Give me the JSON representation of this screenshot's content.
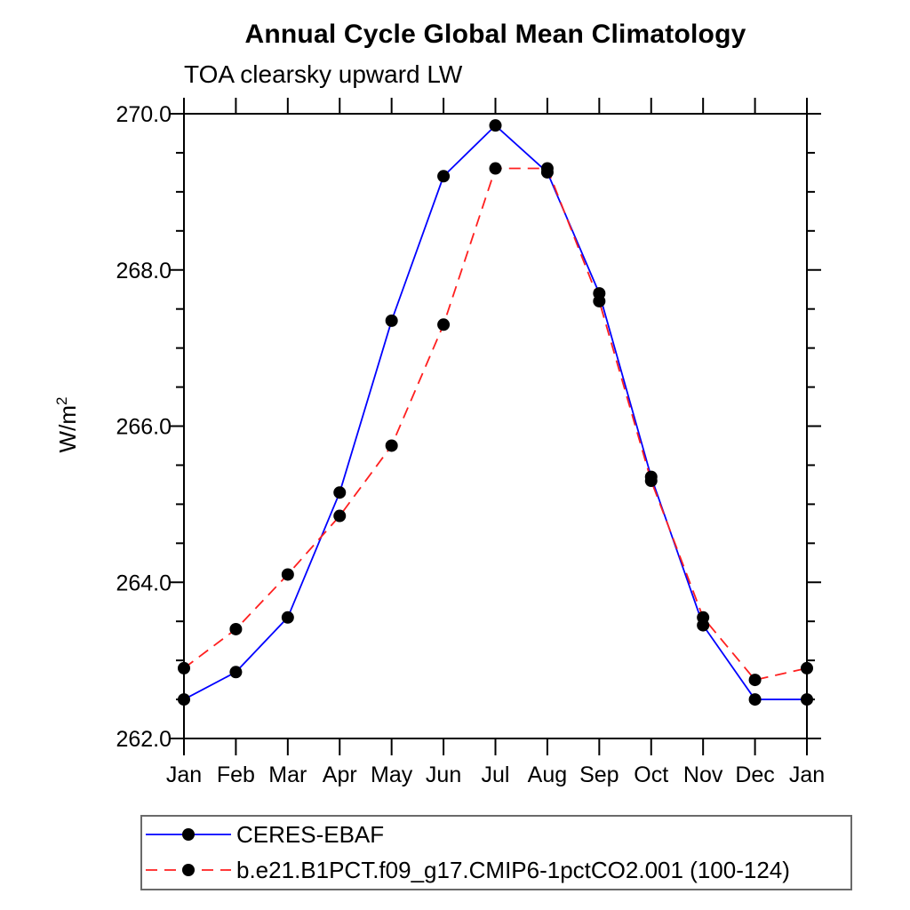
{
  "header": {
    "title": "Annual Cycle Global Mean Climatology",
    "subtitle": "TOA clearsky upward LW"
  },
  "chart_data": {
    "type": "line",
    "title": "Annual Cycle Global Mean Climatology",
    "subtitle": "TOA clearsky upward LW",
    "ylabel": {
      "base": "W/m",
      "sup": "2"
    },
    "categories": [
      "Jan",
      "Feb",
      "Mar",
      "Apr",
      "May",
      "Jun",
      "Jul",
      "Aug",
      "Sep",
      "Oct",
      "Nov",
      "Dec",
      "Jan"
    ],
    "series": [
      {
        "name": "CERES-EBAF",
        "color": "#0000ff",
        "style": "solid",
        "marker": "circle",
        "marker_color": "#000000",
        "values": [
          262.5,
          262.85,
          263.55,
          265.15,
          267.35,
          269.2,
          269.85,
          269.25,
          267.7,
          265.35,
          263.45,
          262.5,
          262.5
        ]
      },
      {
        "name": "b.e21.B1PCT.f09_g17.CMIP6-1pctCO2.001 (100-124)",
        "color": "#ff1f1f",
        "style": "dashed",
        "marker": "circle",
        "marker_color": "#000000",
        "values": [
          262.9,
          263.4,
          264.1,
          264.85,
          265.75,
          267.3,
          269.3,
          269.3,
          267.6,
          265.3,
          263.55,
          262.75,
          262.9
        ]
      }
    ],
    "ylim": [
      262.0,
      270.0
    ],
    "yticks_major": [
      262.0,
      264.0,
      266.0,
      268.0,
      270.0
    ],
    "ytick_labels": [
      "262.0",
      "264.0",
      "266.0",
      "268.0",
      "270.0"
    ],
    "yminor_step": 0.5,
    "grid": false,
    "legend_position": "bottom"
  }
}
